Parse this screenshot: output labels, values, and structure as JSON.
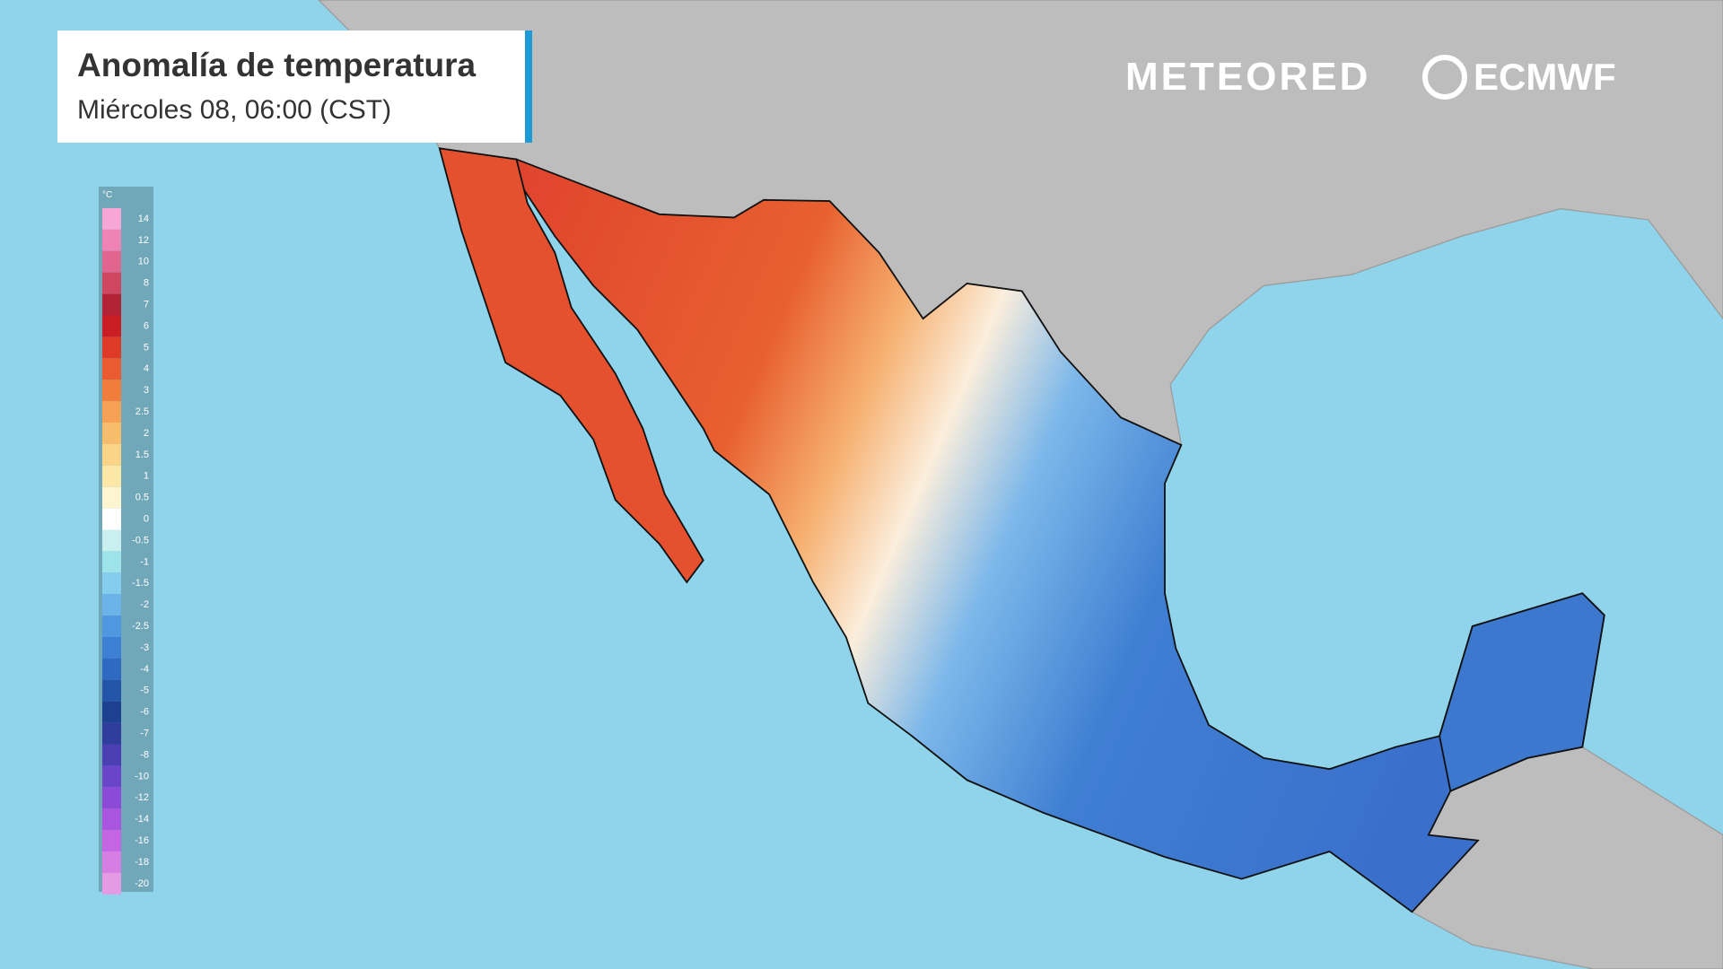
{
  "header": {
    "title": "Anomalía de temperatura",
    "subtitle": "Miércoles 08, 06:00 (CST)"
  },
  "legend": {
    "unit": "°C",
    "entries": [
      {
        "label": "14",
        "color": "#f7a6d6"
      },
      {
        "label": "12",
        "color": "#ee84b4"
      },
      {
        "label": "10",
        "color": "#e06690"
      },
      {
        "label": "8",
        "color": "#cf4661"
      },
      {
        "label": "7",
        "color": "#b22336"
      },
      {
        "label": "6",
        "color": "#c91f24"
      },
      {
        "label": "5",
        "color": "#de3a28"
      },
      {
        "label": "4",
        "color": "#ea5b2f"
      },
      {
        "label": "3",
        "color": "#f07d3c"
      },
      {
        "label": "2.5",
        "color": "#f6a156"
      },
      {
        "label": "2",
        "color": "#f8bd6c"
      },
      {
        "label": "1.5",
        "color": "#fbd487"
      },
      {
        "label": "1",
        "color": "#fde7a6"
      },
      {
        "label": "0.5",
        "color": "#fdf5cf"
      },
      {
        "label": "0",
        "color": "#ffffff"
      },
      {
        "label": "-0.5",
        "color": "#c9f0ee"
      },
      {
        "label": "-1",
        "color": "#9ee3ea"
      },
      {
        "label": "-1.5",
        "color": "#85cdef"
      },
      {
        "label": "-2",
        "color": "#6bb4ea"
      },
      {
        "label": "-2.5",
        "color": "#4f98e0"
      },
      {
        "label": "-3",
        "color": "#3d80d3"
      },
      {
        "label": "-4",
        "color": "#2f6ac2"
      },
      {
        "label": "-5",
        "color": "#2355a9"
      },
      {
        "label": "-6",
        "color": "#1d4190"
      },
      {
        "label": "-7",
        "color": "#2f3e9c"
      },
      {
        "label": "-8",
        "color": "#4a40b3"
      },
      {
        "label": "-10",
        "color": "#6a44c9"
      },
      {
        "label": "-12",
        "color": "#8c4ad8"
      },
      {
        "label": "-14",
        "color": "#aa55e0"
      },
      {
        "label": "-16",
        "color": "#c466e3"
      },
      {
        "label": "-18",
        "color": "#d77ee4"
      },
      {
        "label": "-20",
        "color": "#e59ae6"
      }
    ]
  },
  "logos": {
    "left": "METEORED",
    "right": "ECMWF"
  }
}
